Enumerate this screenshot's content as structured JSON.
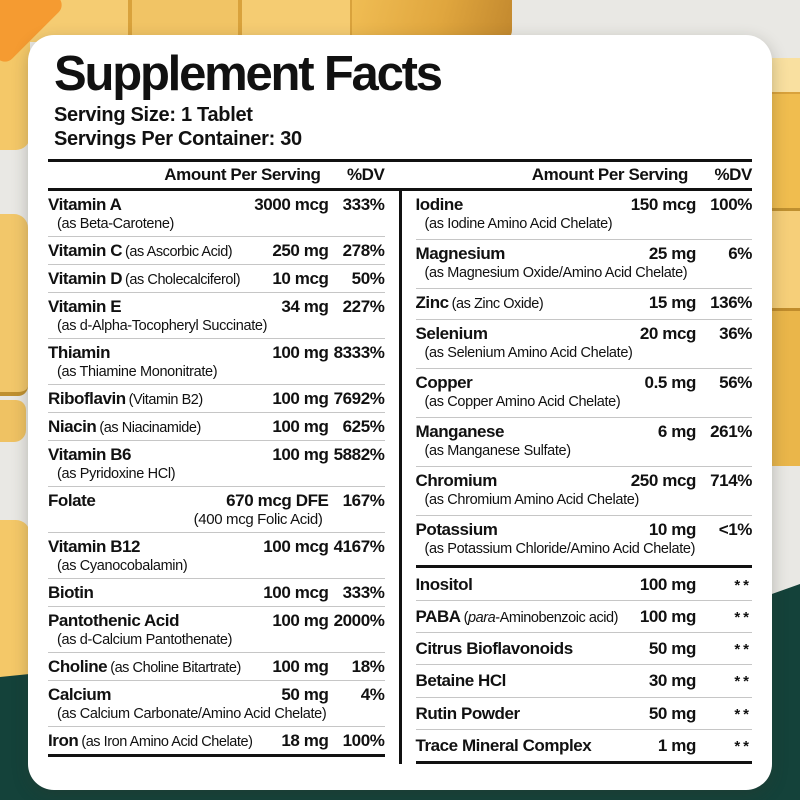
{
  "background": {
    "green_band_color": "#14423a",
    "pill_yellow": "#f2c76a",
    "pill_amber": "#e0a63e",
    "pill_highlight": "#f9e0a0",
    "corner_orange": "#f59b31",
    "base_gray": "#e9e8e4"
  },
  "label": {
    "title": "Supplement Facts",
    "serving_size": "Serving Size: 1 Tablet",
    "servings_per_container": "Servings Per Container: 30",
    "columns": [
      {
        "header": {
          "amount": "Amount Per Serving",
          "dv": "%DV"
        },
        "sections": [
          {
            "rows": [
              {
                "name": "Vitamin A",
                "detail": "(as Beta-Carotene)",
                "amount": "3000 mcg",
                "dv": "333%"
              },
              {
                "name": "Vitamin C",
                "detail": "(as Ascorbic Acid)",
                "inline": true,
                "amount": "250 mg",
                "dv": "278%"
              },
              {
                "name": "Vitamin D",
                "detail": "(as Cholecalciferol)",
                "inline": true,
                "amount": "10 mcg",
                "dv": "50%"
              },
              {
                "name": "Vitamin E",
                "detail": "(as d-Alpha-Tocopheryl Succinate)",
                "amount": "34 mg",
                "dv": "227%"
              },
              {
                "name": "Thiamin",
                "detail": "(as Thiamine Mononitrate)",
                "amount": "100 mg",
                "dv": "8333%"
              },
              {
                "name": "Riboflavin",
                "detail": "(Vitamin B2)",
                "inline": true,
                "amount": "100 mg",
                "dv": "7692%"
              },
              {
                "name": "Niacin",
                "detail": "(as Niacinamide)",
                "inline": true,
                "amount": "100 mg",
                "dv": "625%"
              },
              {
                "name": "Vitamin B6",
                "detail": "(as Pyridoxine HCl)",
                "gap": true,
                "amount": "100 mg",
                "dv": "5882%"
              },
              {
                "name": "Folate",
                "amount": "670 mcg DFE",
                "dv": "167%",
                "subamount": "(400 mcg Folic Acid)"
              },
              {
                "name": "Vitamin B12",
                "detail": "(as Cyanocobalamin)",
                "amount": "100 mcg",
                "dv": "4167%"
              },
              {
                "name": "Biotin",
                "amount": "100 mcg",
                "dv": "333%"
              },
              {
                "name": "Pantothenic Acid",
                "detail": "(as d-Calcium Pantothenate)",
                "amount": "100 mg",
                "dv": "2000%"
              },
              {
                "name": "Choline",
                "detail": "(as Choline Bitartrate)",
                "inline": true,
                "amount": "100 mg",
                "dv": "18%"
              },
              {
                "name": "Calcium",
                "detail": "(as Calcium Carbonate/Amino Acid Chelate)",
                "amount": "50 mg",
                "dv": "4%"
              },
              {
                "name": "Iron",
                "detail": "(as Iron Amino Acid Chelate)",
                "inline": true,
                "amount": "18 mg",
                "dv": "100%"
              }
            ]
          }
        ]
      },
      {
        "header": {
          "amount": "Amount Per Serving",
          "dv": "%DV"
        },
        "sections": [
          {
            "rows": [
              {
                "name": "Iodine",
                "detail": "(as Iodine Amino Acid Chelate)",
                "amount": "150 mcg",
                "dv": "100%"
              },
              {
                "name": "Magnesium",
                "detail": "(as Magnesium Oxide/Amino Acid Chelate)",
                "amount": "25 mg",
                "dv": "6%"
              },
              {
                "name": "Zinc",
                "detail": "(as Zinc Oxide)",
                "inline": true,
                "amount": "15 mg",
                "dv": "136%"
              },
              {
                "name": "Selenium",
                "detail": "(as Selenium Amino Acid Chelate)",
                "amount": "20 mcg",
                "dv": "36%"
              },
              {
                "name": "Copper",
                "detail": "(as Copper Amino Acid Chelate)",
                "amount": "0.5 mg",
                "dv": "56%"
              },
              {
                "name": "Manganese",
                "detail": "(as Manganese Sulfate)",
                "amount": "6 mg",
                "dv": "261%"
              },
              {
                "name": "Chromium",
                "detail": "(as Chromium Amino Acid Chelate)",
                "amount": "250 mcg",
                "dv": "714%"
              },
              {
                "name": "Potassium",
                "detail": "(as Potassium Chloride/Amino Acid Chelate)",
                "amount": "10 mg",
                "dv": "<1%"
              }
            ]
          },
          {
            "rows": [
              {
                "name": "Inositol",
                "amount": "100 mg",
                "dv": "**"
              },
              {
                "name": "PABA",
                "detail_pre": "(",
                "detail_italic": "para",
                "detail_post": "-Aminobenzoic acid)",
                "inline": true,
                "amount": "100 mg",
                "dv": "**"
              },
              {
                "name": "Citrus Bioflavonoids",
                "amount": "50 mg",
                "dv": "**"
              },
              {
                "name": "Betaine HCl",
                "amount": "30 mg",
                "dv": "**"
              },
              {
                "name": "Rutin Powder",
                "amount": "50 mg",
                "dv": "**"
              },
              {
                "name": "Trace Mineral Complex",
                "amount": "1 mg",
                "dv": "**"
              }
            ]
          }
        ]
      }
    ]
  }
}
